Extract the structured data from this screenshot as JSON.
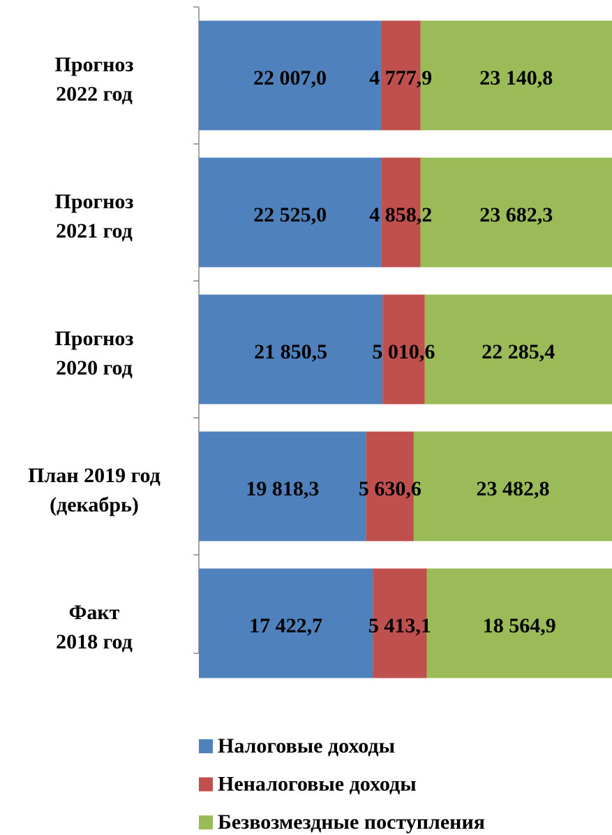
{
  "chart_data": {
    "type": "bar",
    "orientation": "horizontal",
    "stacking": "percent",
    "categories": [
      [
        "Прогноз",
        "2022 год"
      ],
      [
        "Прогноз",
        "2021 год"
      ],
      [
        "Прогноз",
        "2020 год"
      ],
      [
        "План 2019 год",
        "(декабрь)"
      ],
      [
        "Факт",
        "2018 год"
      ]
    ],
    "series": [
      {
        "name": "Налоговые доходы",
        "color": "#4f81bd",
        "values": [
          22007.0,
          22525.0,
          21850.5,
          19818.3,
          17422.7
        ],
        "value_labels": [
          "22 007,0",
          "22 525,0",
          "21 850,5",
          "19 818,3",
          "17 422,7"
        ]
      },
      {
        "name": "Неналоговые доходы",
        "color": "#c0504d",
        "values": [
          4777.9,
          4858.2,
          5010.6,
          5630.6,
          5413.1
        ],
        "value_labels": [
          "4 777,9",
          "4 858,2",
          "5 010,6",
          "5 630,6",
          "5 413,1"
        ]
      },
      {
        "name": "Безвозмездные поступления",
        "color": "#9bbb59",
        "values": [
          23140.8,
          23682.3,
          22285.4,
          23482.8,
          18564.9
        ],
        "value_labels": [
          "23 140,8",
          "23 682,3",
          "22 285,4",
          "23 482,8",
          "18 564,9"
        ]
      }
    ],
    "legend": "bottom"
  }
}
